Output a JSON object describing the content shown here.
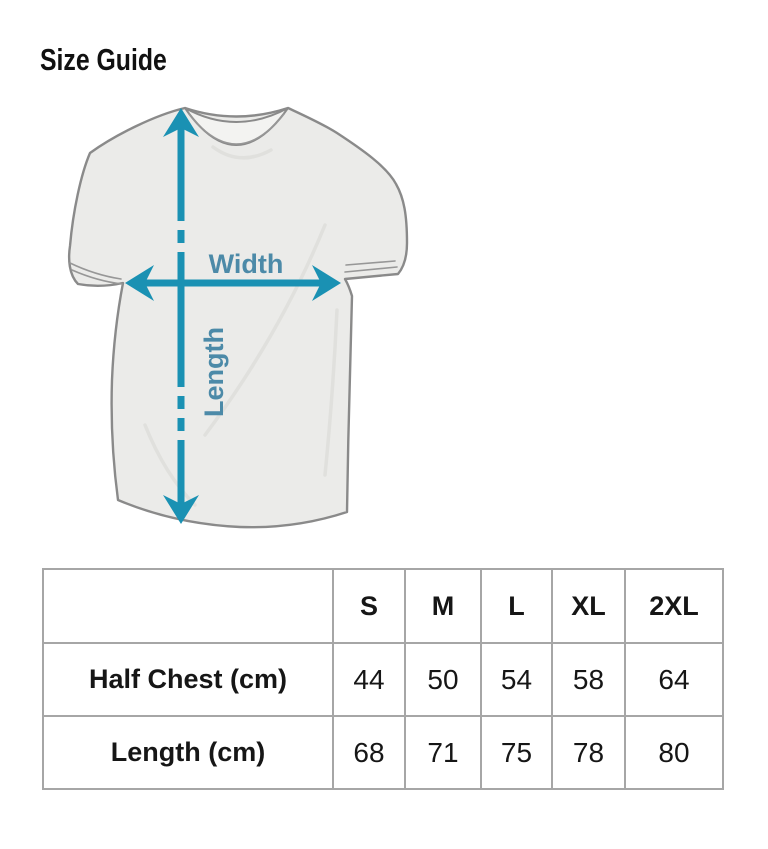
{
  "page": {
    "title": "Size Guide"
  },
  "diagram": {
    "width_label": "Width",
    "length_label": "Length",
    "colors": {
      "arrow": "#1a91b3",
      "label": "#4c8aa8",
      "shirt_fill": "#ebebe9",
      "shirt_outline": "#8a8a8a"
    }
  },
  "size_table": {
    "corner": "",
    "columns": [
      "S",
      "M",
      "L",
      "XL",
      "2XL"
    ],
    "rows": [
      {
        "label": "Half Chest (cm)",
        "values": [
          "44",
          "50",
          "54",
          "58",
          "64"
        ]
      },
      {
        "label": "Length (cm)",
        "values": [
          "68",
          "71",
          "75",
          "78",
          "80"
        ]
      }
    ],
    "border_color": "#a6a6a6"
  }
}
